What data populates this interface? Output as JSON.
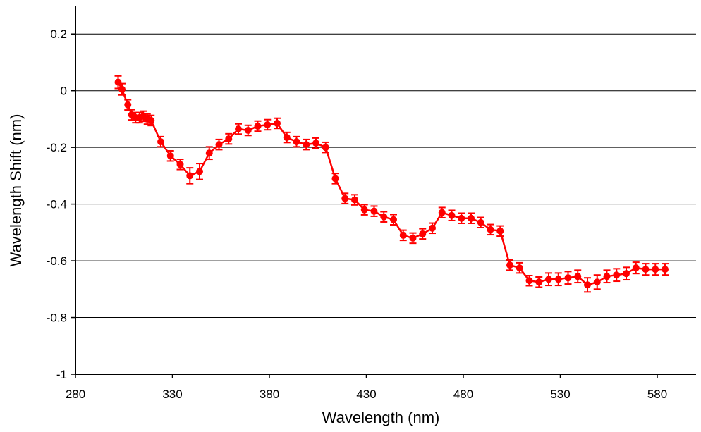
{
  "chart_data": {
    "type": "line",
    "xlabel": "Wavelength (nm)",
    "ylabel": "Wavelength Shift (nm)",
    "xlim": [
      280,
      600
    ],
    "ylim": [
      -1,
      0.3
    ],
    "xticks": [
      280,
      330,
      380,
      430,
      480,
      530,
      580
    ],
    "yticks": [
      0.2,
      0,
      -0.2,
      -0.4,
      -0.6,
      -0.8,
      -1
    ],
    "ytick_labels": [
      "0.2",
      "0",
      "-0.2",
      "-0.4",
      "-0.6",
      "-0.8",
      "-1"
    ],
    "grid": "horizontal",
    "color": "#ff0000",
    "series": [
      {
        "x": [
          302,
          304,
          307,
          309,
          311,
          313,
          315,
          317,
          319,
          324,
          329,
          334,
          339,
          344,
          349,
          354,
          359,
          364,
          369,
          374,
          379,
          384,
          389,
          394,
          399,
          404,
          409,
          414,
          419,
          424,
          429,
          434,
          439,
          444,
          449,
          454,
          459,
          464,
          469,
          474,
          479,
          484,
          489,
          494,
          499,
          504,
          509,
          514,
          519,
          524,
          529,
          534,
          539,
          544,
          549,
          554,
          559,
          564,
          569,
          574,
          579,
          584
        ],
        "y": [
          0.03,
          0.005,
          -0.05,
          -0.085,
          -0.095,
          -0.095,
          -0.09,
          -0.1,
          -0.105,
          -0.18,
          -0.23,
          -0.26,
          -0.3,
          -0.285,
          -0.22,
          -0.19,
          -0.17,
          -0.135,
          -0.14,
          -0.125,
          -0.12,
          -0.115,
          -0.165,
          -0.18,
          -0.19,
          -0.185,
          -0.2,
          -0.31,
          -0.38,
          -0.385,
          -0.42,
          -0.425,
          -0.445,
          -0.455,
          -0.51,
          -0.52,
          -0.505,
          -0.485,
          -0.43,
          -0.44,
          -0.45,
          -0.45,
          -0.465,
          -0.49,
          -0.495,
          -0.615,
          -0.625,
          -0.67,
          -0.675,
          -0.665,
          -0.665,
          -0.66,
          -0.655,
          -0.685,
          -0.675,
          -0.655,
          -0.65,
          -0.645,
          -0.625,
          -0.63,
          -0.63,
          -0.63
        ],
        "err": [
          0.022,
          0.02,
          0.018,
          0.018,
          0.018,
          0.018,
          0.018,
          0.018,
          0.018,
          0.018,
          0.018,
          0.018,
          0.028,
          0.028,
          0.022,
          0.018,
          0.018,
          0.018,
          0.018,
          0.018,
          0.018,
          0.018,
          0.018,
          0.018,
          0.018,
          0.018,
          0.018,
          0.018,
          0.018,
          0.018,
          0.018,
          0.018,
          0.018,
          0.018,
          0.018,
          0.018,
          0.018,
          0.018,
          0.018,
          0.018,
          0.018,
          0.018,
          0.018,
          0.018,
          0.018,
          0.018,
          0.018,
          0.018,
          0.018,
          0.022,
          0.022,
          0.022,
          0.022,
          0.025,
          0.025,
          0.022,
          0.022,
          0.022,
          0.02,
          0.02,
          0.02,
          0.02
        ]
      }
    ]
  }
}
